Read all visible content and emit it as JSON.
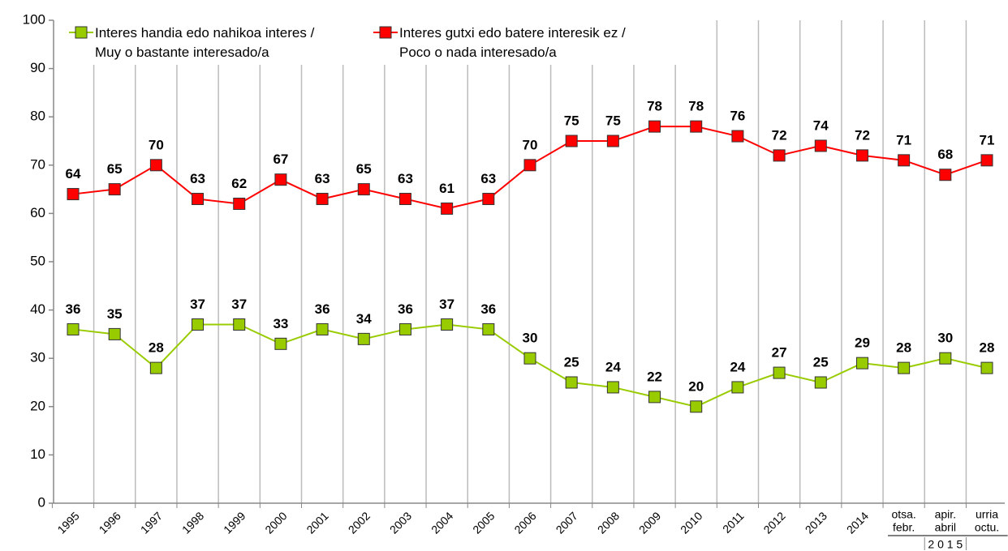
{
  "chart_data": {
    "type": "line",
    "categories": [
      "1995",
      "1996",
      "1997",
      "1998",
      "1999",
      "2000",
      "2001",
      "2002",
      "2003",
      "2004",
      "2005",
      "2006",
      "2007",
      "2008",
      "2009",
      "2010",
      "2011",
      "2012",
      "2013",
      "2014",
      [
        "otsa.",
        "febr."
      ],
      [
        "apir.",
        "abril"
      ],
      [
        "urria",
        "octu."
      ]
    ],
    "category_group": {
      "label": "2 0 1 5",
      "from": 20,
      "to": 22
    },
    "series": [
      {
        "name": [
          "Interes handia edo nahikoa interes /",
          "Muy o bastante interesado/a"
        ],
        "color": "#99cc00",
        "values": [
          36,
          35,
          28,
          37,
          37,
          33,
          36,
          34,
          36,
          37,
          36,
          30,
          25,
          24,
          22,
          20,
          24,
          27,
          25,
          29,
          28,
          30,
          28
        ]
      },
      {
        "name": [
          "Interes gutxi edo batere interesik ez /",
          "Poco o nada interesado/a"
        ],
        "color": "#ff0000",
        "values": [
          64,
          65,
          70,
          63,
          62,
          67,
          63,
          65,
          63,
          61,
          63,
          70,
          75,
          75,
          78,
          78,
          76,
          72,
          74,
          72,
          71,
          68,
          71
        ]
      }
    ],
    "ylim": [
      0,
      100
    ],
    "yticks": [
      0,
      10,
      20,
      30,
      40,
      50,
      60,
      70,
      80,
      90,
      100
    ],
    "category_dividers": true,
    "legend": "top"
  }
}
